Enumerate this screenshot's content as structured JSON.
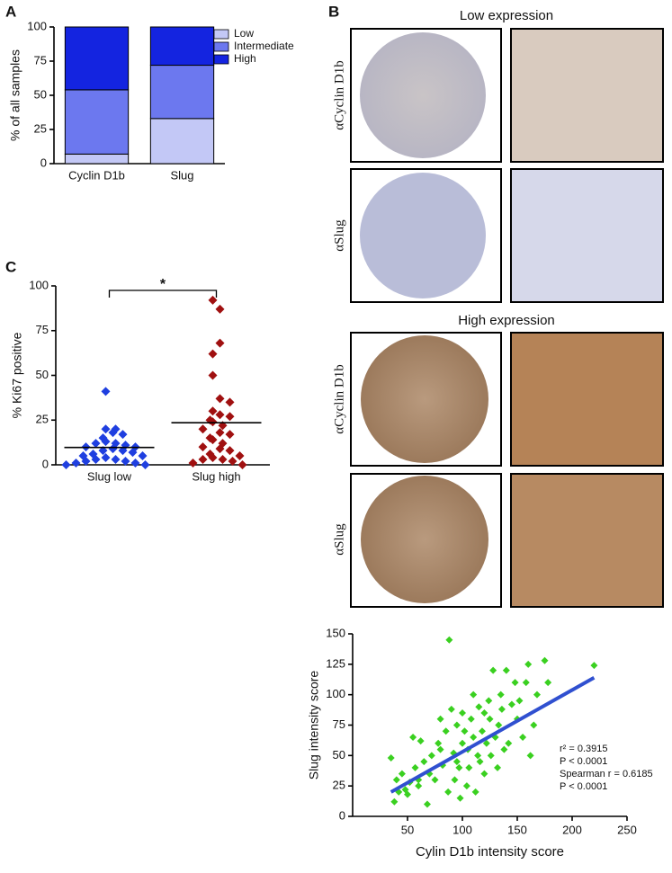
{
  "panels": {
    "labels": [
      "A",
      "B",
      "C"
    ]
  },
  "images": {
    "headers": [
      "Low expression",
      "High expression"
    ],
    "rows": [
      "αCyclin D1b",
      "αSlug",
      "αCyclin D1b",
      "αSlug"
    ]
  },
  "chart_data": [
    {
      "type": "stacked-bar",
      "ylabel": "% of all samples",
      "categories": [
        "Cyclin D1b",
        "Slug"
      ],
      "series": [
        {
          "name": "Low",
          "color": "#c3c8f6",
          "values": [
            7,
            33
          ]
        },
        {
          "name": "Intermediate",
          "color": "#6c78ef",
          "values": [
            47,
            39
          ]
        },
        {
          "name": "High",
          "color": "#1424e0",
          "values": [
            46,
            28
          ]
        }
      ],
      "ylim": [
        0,
        100
      ],
      "yticks": [
        0,
        25,
        50,
        75,
        100
      ],
      "legend": "top-right"
    },
    {
      "type": "strip",
      "ylabel": "% Ki67 positive",
      "categories": [
        "Slug low",
        "Slug high"
      ],
      "groups": [
        {
          "color": "#1f3fe0",
          "mean": 9.7,
          "values": [
            41,
            20,
            20,
            18,
            17,
            15,
            13,
            12,
            12,
            11,
            10,
            10,
            9,
            8,
            8,
            7,
            6,
            5,
            5,
            4,
            3,
            3,
            2,
            2,
            1,
            1,
            0,
            0
          ]
        },
        {
          "color": "#a01010",
          "mean": 23.5,
          "values": [
            92,
            87,
            68,
            62,
            50,
            37,
            35,
            30,
            28,
            27,
            25,
            24,
            22,
            20,
            18,
            17,
            15,
            14,
            12,
            10,
            9,
            8,
            6,
            5,
            4,
            3,
            3,
            2,
            1,
            0
          ]
        }
      ],
      "annotation": "*",
      "ylim": [
        0,
        100
      ],
      "yticks": [
        0,
        25,
        50,
        75,
        100
      ]
    },
    {
      "type": "scatter",
      "xlabel": "Cylin D1b intensity score",
      "ylabel": "Slug intensity score",
      "color": "#3ad020",
      "x": [
        35,
        38,
        40,
        42,
        45,
        48,
        50,
        52,
        55,
        57,
        60,
        62,
        65,
        68,
        70,
        72,
        75,
        78,
        80,
        82,
        85,
        87,
        88,
        90,
        92,
        93,
        95,
        97,
        98,
        100,
        100,
        102,
        104,
        105,
        106,
        108,
        110,
        110,
        112,
        114,
        115,
        116,
        118,
        120,
        120,
        122,
        124,
        125,
        126,
        128,
        130,
        132,
        133,
        135,
        136,
        138,
        140,
        142,
        145,
        148,
        150,
        152,
        155,
        158,
        160,
        162,
        165,
        168,
        175,
        178,
        220,
        60,
        80,
        95
      ],
      "y": [
        48,
        12,
        30,
        20,
        35,
        22,
        18,
        28,
        65,
        40,
        25,
        62,
        45,
        10,
        35,
        50,
        30,
        60,
        55,
        42,
        70,
        20,
        145,
        88,
        52,
        30,
        75,
        40,
        15,
        60,
        85,
        70,
        25,
        55,
        40,
        80,
        65,
        100,
        20,
        50,
        90,
        45,
        70,
        85,
        35,
        60,
        95,
        80,
        50,
        120,
        65,
        40,
        75,
        100,
        88,
        55,
        120,
        60,
        92,
        110,
        80,
        95,
        65,
        110,
        125,
        50,
        75,
        100,
        128,
        110,
        124,
        30,
        80,
        45
      ],
      "fit": {
        "color": "#3050d0",
        "x": [
          35,
          220
        ],
        "y": [
          20,
          114
        ]
      },
      "annotations": [
        "r² = 0.3915",
        "P < 0.0001",
        "Spearman r = 0.6185",
        "P < 0.0001"
      ],
      "xlim": [
        0,
        250
      ],
      "xticks": [
        50,
        100,
        150,
        200,
        250
      ],
      "ylim": [
        0,
        150
      ],
      "yticks": [
        0,
        25,
        50,
        75,
        100,
        125,
        150
      ]
    }
  ]
}
